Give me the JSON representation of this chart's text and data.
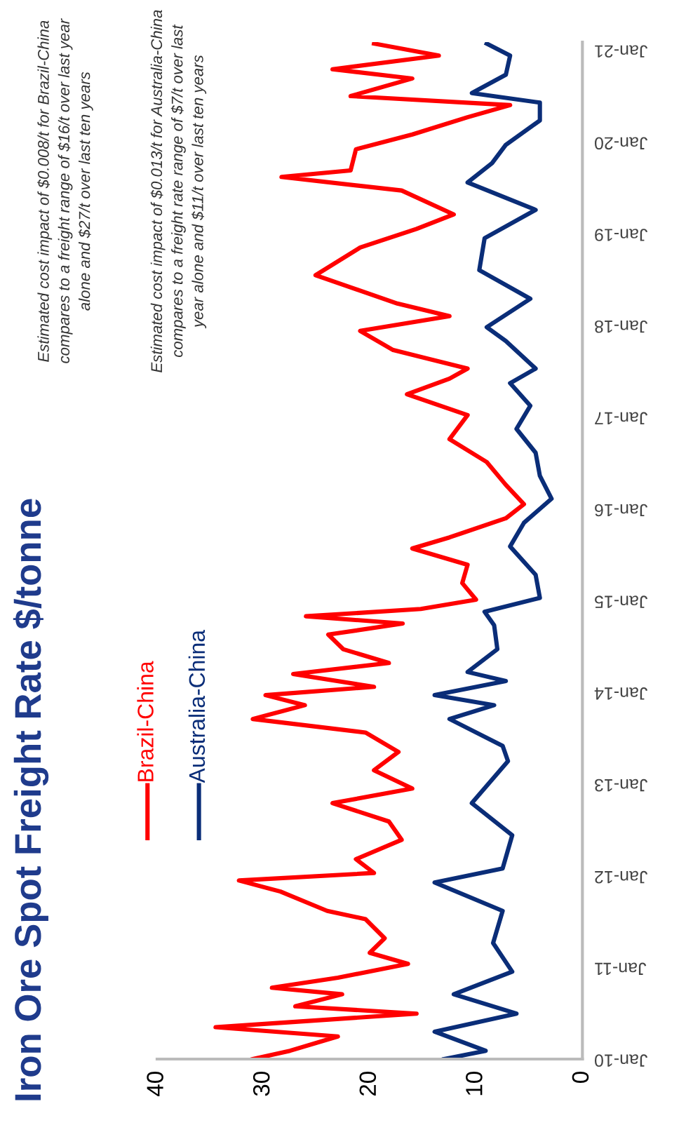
{
  "chart_data": {
    "type": "line",
    "title": "Iron Ore Spot Freight Rate $/tonne",
    "annotations": [
      "Estimated cost impact of $0.008/t for Brazil-China\ncompares to a freight range of $16/t over last year\nalone and $27/t over last ten years",
      "Estimated cost impact of $0.013/t for Australia-China\ncompares to a freight rate range of $7/t over last\nyear alone and $11/t over last ten years"
    ],
    "series": [
      {
        "name": "Brazil-China",
        "color": "#ff0000",
        "x": [
          "2010-01-01",
          "2010-02-03",
          "2010-04-01",
          "2010-05-08",
          "2010-05-26",
          "2010-07-01",
          "2010-07-30",
          "2010-09-16",
          "2010-10-12",
          "2010-11-21",
          "2011-01-15",
          "2011-02-28",
          "2011-04-27",
          "2011-07-12",
          "2011-08-14",
          "2011-10-30",
          "2011-12-13",
          "2012-01-12",
          "2012-03-07",
          "2012-05-23",
          "2012-08-04",
          "2012-10-16",
          "2012-12-13",
          "2013-02-24",
          "2013-05-08",
          "2013-07-24",
          "2013-09-16",
          "2013-11-10",
          "2013-12-20",
          "2014-01-22",
          "2014-03-14",
          "2014-04-27",
          "2014-06-21",
          "2014-08-18",
          "2014-10-01",
          "2014-10-30",
          "2014-11-28",
          "2015-01-04",
          "2015-03-11",
          "2015-05-23",
          "2015-07-27",
          "2015-09-09",
          "2015-11-24",
          "2016-01-19",
          "2016-04-05",
          "2016-07-05",
          "2016-10-04",
          "2017-01-08",
          "2017-04-01",
          "2017-06-02",
          "2017-07-12",
          "2017-09-24",
          "2017-12-09",
          "2018-02-06",
          "2018-03-28",
          "2018-07-19",
          "2018-11-06",
          "2019-01-19",
          "2019-03-18",
          "2019-06-21",
          "2019-08-14",
          "2019-09-09",
          "2019-12-02",
          "2020-01-30",
          "2020-04-08",
          "2020-05-26",
          "2020-07-01",
          "2020-09-09",
          "2020-10-16",
          "2020-12-09",
          "2021-01-26"
        ],
        "values": [
          31,
          27.5,
          23,
          34.5,
          28.2,
          15.6,
          27,
          22.6,
          29.2,
          23,
          16.4,
          20,
          18.6,
          20.4,
          24,
          28.4,
          32.3,
          19.6,
          21.3,
          17,
          18.2,
          23.5,
          16,
          19.6,
          17.3,
          20.4,
          31,
          26.1,
          29.8,
          19.6,
          27.2,
          18.2,
          22.5,
          23.9,
          16.9,
          26,
          15.2,
          10,
          11.3,
          10.8,
          16,
          12.5,
          7.2,
          5.5,
          7.2,
          9,
          12.5,
          10.8,
          16.5,
          12.5,
          10.8,
          17.8,
          20.9,
          12.5,
          17.4,
          25.1,
          20.9,
          15.6,
          12.1,
          17,
          28.3,
          21.8,
          21.3,
          16,
          10.8,
          6.8,
          21.8,
          16,
          23.5,
          13.5,
          19.6
        ]
      },
      {
        "name": "Australia-China",
        "color": "#0a2d78",
        "x": [
          "2010-01-01",
          "2010-02-03",
          "2010-04-20",
          "2010-07-01",
          "2010-09-16",
          "2010-12-15",
          "2011-04-08",
          "2011-08-14",
          "2011-12-05",
          "2012-01-30",
          "2012-06-10",
          "2012-10-16",
          "2013-04-01",
          "2013-06-01",
          "2013-09-16",
          "2013-11-10",
          "2013-12-20",
          "2014-02-14",
          "2014-03-22",
          "2014-06-21",
          "2014-09-24",
          "2014-11-17",
          "2015-01-11",
          "2015-04-13",
          "2015-08-04",
          "2015-11-06",
          "2016-02-10",
          "2016-05-11",
          "2016-08-11",
          "2016-11-14",
          "2017-02-14",
          "2017-05-15",
          "2017-07-12",
          "2017-10-30",
          "2017-12-24",
          "2018-04-16",
          "2018-08-08",
          "2018-12-13",
          "2019-04-05",
          "2019-07-23",
          "2019-10-08",
          "2019-12-20",
          "2020-03-26",
          "2020-06-05",
          "2020-07-13",
          "2020-09-24",
          "2020-12-09",
          "2021-01-26"
        ],
        "values": [
          13,
          9.1,
          13.9,
          6.2,
          12.1,
          6.6,
          8.4,
          7.5,
          13.9,
          7.5,
          6.6,
          10.4,
          7,
          7.5,
          12.5,
          8.3,
          13.9,
          7.2,
          10.8,
          8,
          8.3,
          9.2,
          4,
          4.4,
          6.8,
          5.5,
          2.9,
          4,
          4.4,
          6.2,
          4.9,
          6.8,
          4.4,
          7.2,
          9,
          4.9,
          9.7,
          9.2,
          4.4,
          10.8,
          8.5,
          7.2,
          4,
          4,
          10.4,
          7.2,
          6.8,
          9
        ]
      }
    ],
    "orientation": "horizontal",
    "ylim": [
      "2010-01-01",
      "2021-02-01"
    ],
    "yticks": [
      {
        "value": "2010-01",
        "label": "Jan-10"
      },
      {
        "value": "2011-01",
        "label": "Jan-11"
      },
      {
        "value": "2012-01",
        "label": "Jan-12"
      },
      {
        "value": "2013-01",
        "label": "Jan-13"
      },
      {
        "value": "2014-01",
        "label": "Jan-14"
      },
      {
        "value": "2015-01",
        "label": "Jan-15"
      },
      {
        "value": "2016-01",
        "label": "Jan-16"
      },
      {
        "value": "2017-01",
        "label": "Jan-17"
      },
      {
        "value": "2018-01",
        "label": "Jan-18"
      },
      {
        "value": "2019-01",
        "label": "Jan-19"
      },
      {
        "value": "2020-01",
        "label": "Jan-20"
      },
      {
        "value": "2021-01",
        "label": "Jan-21"
      }
    ],
    "xlim": [
      40,
      0
    ],
    "xticks": [
      40,
      30,
      20,
      10,
      0
    ],
    "legend": "bottom left",
    "grid": false,
    "marker": "none",
    "line_style": "solid"
  }
}
